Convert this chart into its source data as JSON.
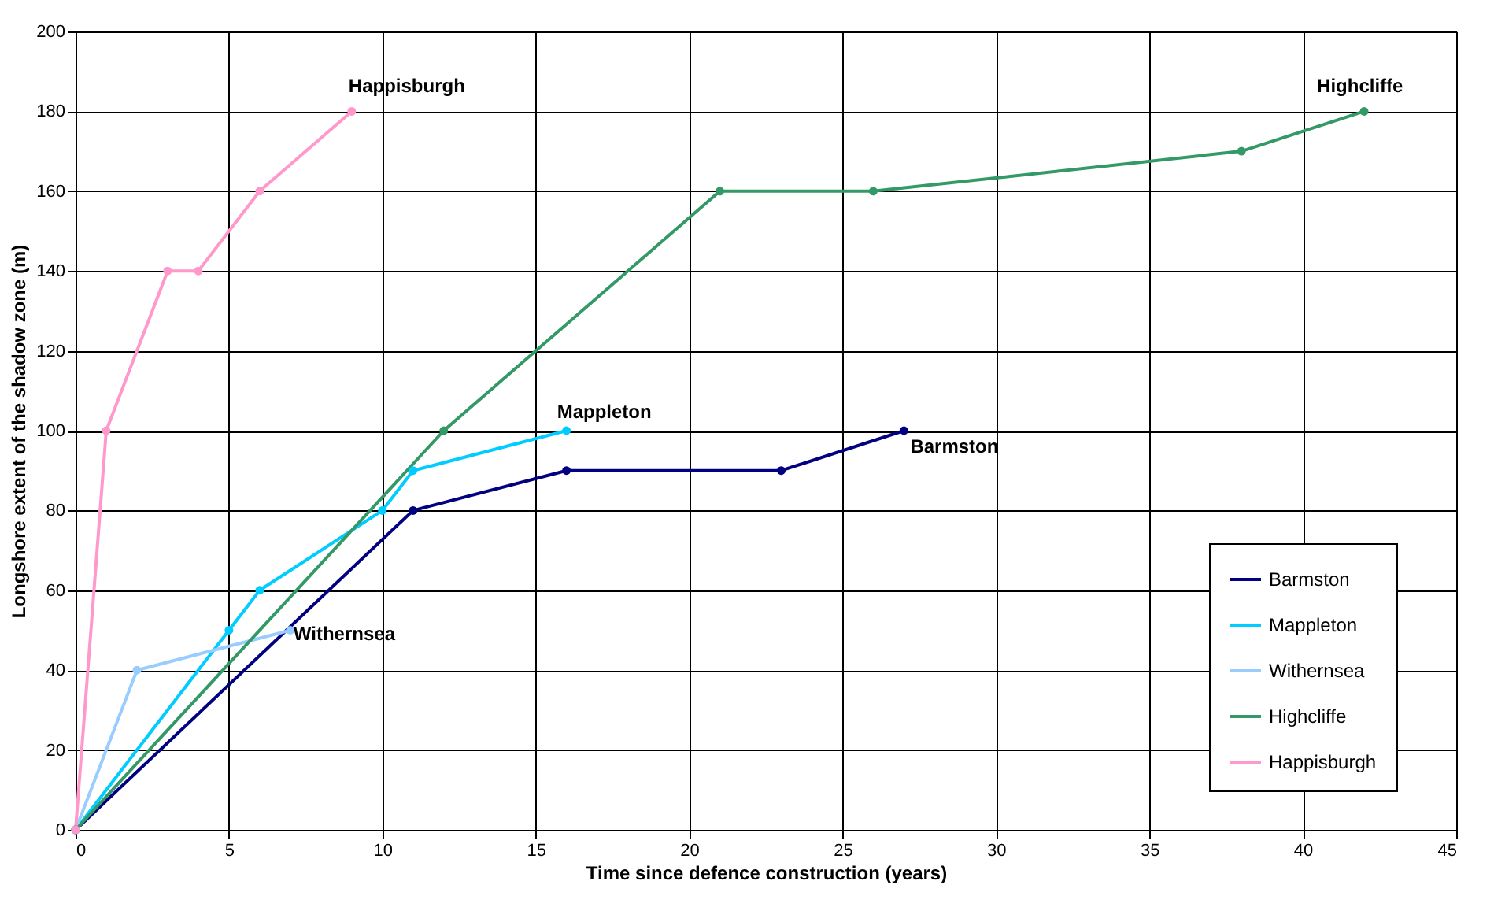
{
  "chart_data": {
    "type": "line",
    "xlabel": "Time since defence construction (years)",
    "ylabel": "Longshore extent of the shadow zone (m)",
    "xlim": [
      0,
      45
    ],
    "xticks": [
      0,
      5,
      10,
      15,
      20,
      25,
      30,
      35,
      40,
      45
    ],
    "ylim": [
      0,
      200
    ],
    "yticks": [
      0,
      20,
      40,
      60,
      80,
      100,
      120,
      140,
      160,
      180,
      200
    ],
    "grid": true,
    "legend": "bottom right",
    "marker": "circle",
    "line_style": "solid",
    "series": [
      {
        "name": "Barmston",
        "color": "#000080",
        "x": [
          0,
          11,
          16,
          23,
          27
        ],
        "values": [
          0,
          80,
          90,
          90,
          100
        ]
      },
      {
        "name": "Mappleton",
        "color": "#00ccff",
        "x": [
          0,
          5,
          6,
          10,
          11,
          16
        ],
        "values": [
          0,
          50,
          60,
          80,
          90,
          100
        ]
      },
      {
        "name": "Withernsea",
        "color": "#99ccff",
        "x": [
          0,
          2,
          7
        ],
        "values": [
          0,
          40,
          50
        ]
      },
      {
        "name": "Highcliffe",
        "color": "#339966",
        "x": [
          0,
          12,
          21,
          26,
          38,
          42
        ],
        "values": [
          0,
          100,
          160,
          160,
          170,
          180
        ]
      },
      {
        "name": "Happisburgh",
        "color": "#ff99cc",
        "x": [
          0,
          1,
          3,
          4,
          6,
          9
        ],
        "values": [
          0,
          100,
          140,
          140,
          160,
          180
        ]
      }
    ]
  }
}
